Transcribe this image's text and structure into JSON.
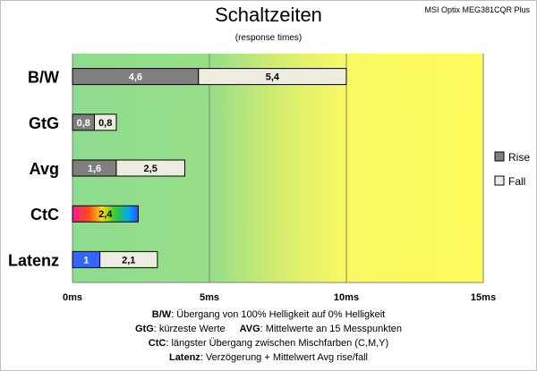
{
  "header": {
    "model": "MSI Optix MEG381CQR Plus"
  },
  "chart_data": {
    "type": "bar",
    "stacked": true,
    "orientation": "horizontal",
    "title": "Schaltzeiten",
    "subtitle": "(response times)",
    "xlim": [
      0,
      15
    ],
    "x_ticks": [
      "0ms",
      "5ms",
      "10ms",
      "15ms"
    ],
    "categories": [
      "B/W",
      "GtG",
      "Avg",
      "CtC",
      "Latenz"
    ],
    "series": [
      {
        "name": "Rise",
        "color": "#7f7f7f",
        "values": [
          4.6,
          0.8,
          1.6,
          null,
          null
        ]
      },
      {
        "name": "Fall",
        "color": "#eeece1",
        "values": [
          5.4,
          0.8,
          2.5,
          null,
          2.1
        ]
      }
    ],
    "special_bars": [
      {
        "category": "CtC",
        "value": 2.4,
        "label": "2,4",
        "fill": "rainbow"
      },
      {
        "category": "Latenz",
        "value": 1,
        "label": "1",
        "fill": "#3366ff"
      }
    ],
    "value_labels": [
      [
        "4,6",
        "5,4"
      ],
      [
        "0,8",
        "0,8"
      ],
      [
        "1,6",
        "2,5"
      ],
      [
        null,
        null
      ],
      [
        null,
        "2,1"
      ]
    ],
    "background_zones": "green (0-5ms) to yellow (10-15ms)",
    "grid": true,
    "legend_position": "right"
  },
  "notes": [
    {
      "key": "B/W",
      "text": ":  Übergang von 100% Helligkeit auf 0% Helligkeit"
    },
    {
      "key": "GtG",
      "text": ": kürzeste  Werte",
      "key2": "AVG",
      "text2": ": Mittelwerte  an 15 Messpunkten"
    },
    {
      "key": "CtC",
      "text": ": längster Übergang  zwischen Mischfarben  (C,M,Y)"
    },
    {
      "key": "Latenz",
      "text": ": Verzögerung  + Mittelwert  Avg rise/fall"
    }
  ]
}
